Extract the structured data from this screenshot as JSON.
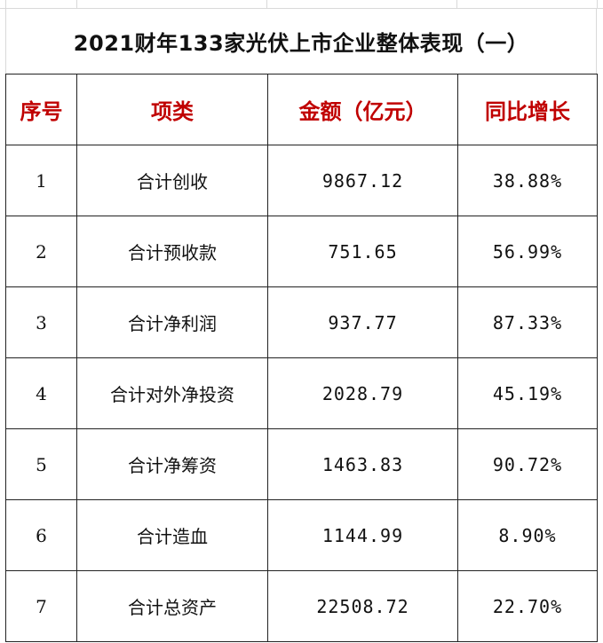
{
  "title": "2021财年133家光伏上市企业整体表现（一）",
  "headers": {
    "index": "序号",
    "item": "项类",
    "amount": "金额（亿元）",
    "yoy": "同比增长"
  },
  "colors": {
    "header_text": "#c00000",
    "body_text": "#111111",
    "border": "#222222"
  },
  "rows": [
    {
      "index": "1",
      "item": "合计创收",
      "amount": "9867.12",
      "yoy": "38.88%"
    },
    {
      "index": "2",
      "item": "合计预收款",
      "amount": "751.65",
      "yoy": "56.99%"
    },
    {
      "index": "3",
      "item": "合计净利润",
      "amount": "937.77",
      "yoy": "87.33%"
    },
    {
      "index": "4",
      "item": "合计对外净投资",
      "amount": "2028.79",
      "yoy": "45.19%"
    },
    {
      "index": "5",
      "item": "合计净筹资",
      "amount": "1463.83",
      "yoy": "90.72%"
    },
    {
      "index": "6",
      "item": "合计造血",
      "amount": "1144.99",
      "yoy": "8.90%"
    },
    {
      "index": "7",
      "item": "合计总资产",
      "amount": "22508.72",
      "yoy": "22.70%"
    }
  ]
}
